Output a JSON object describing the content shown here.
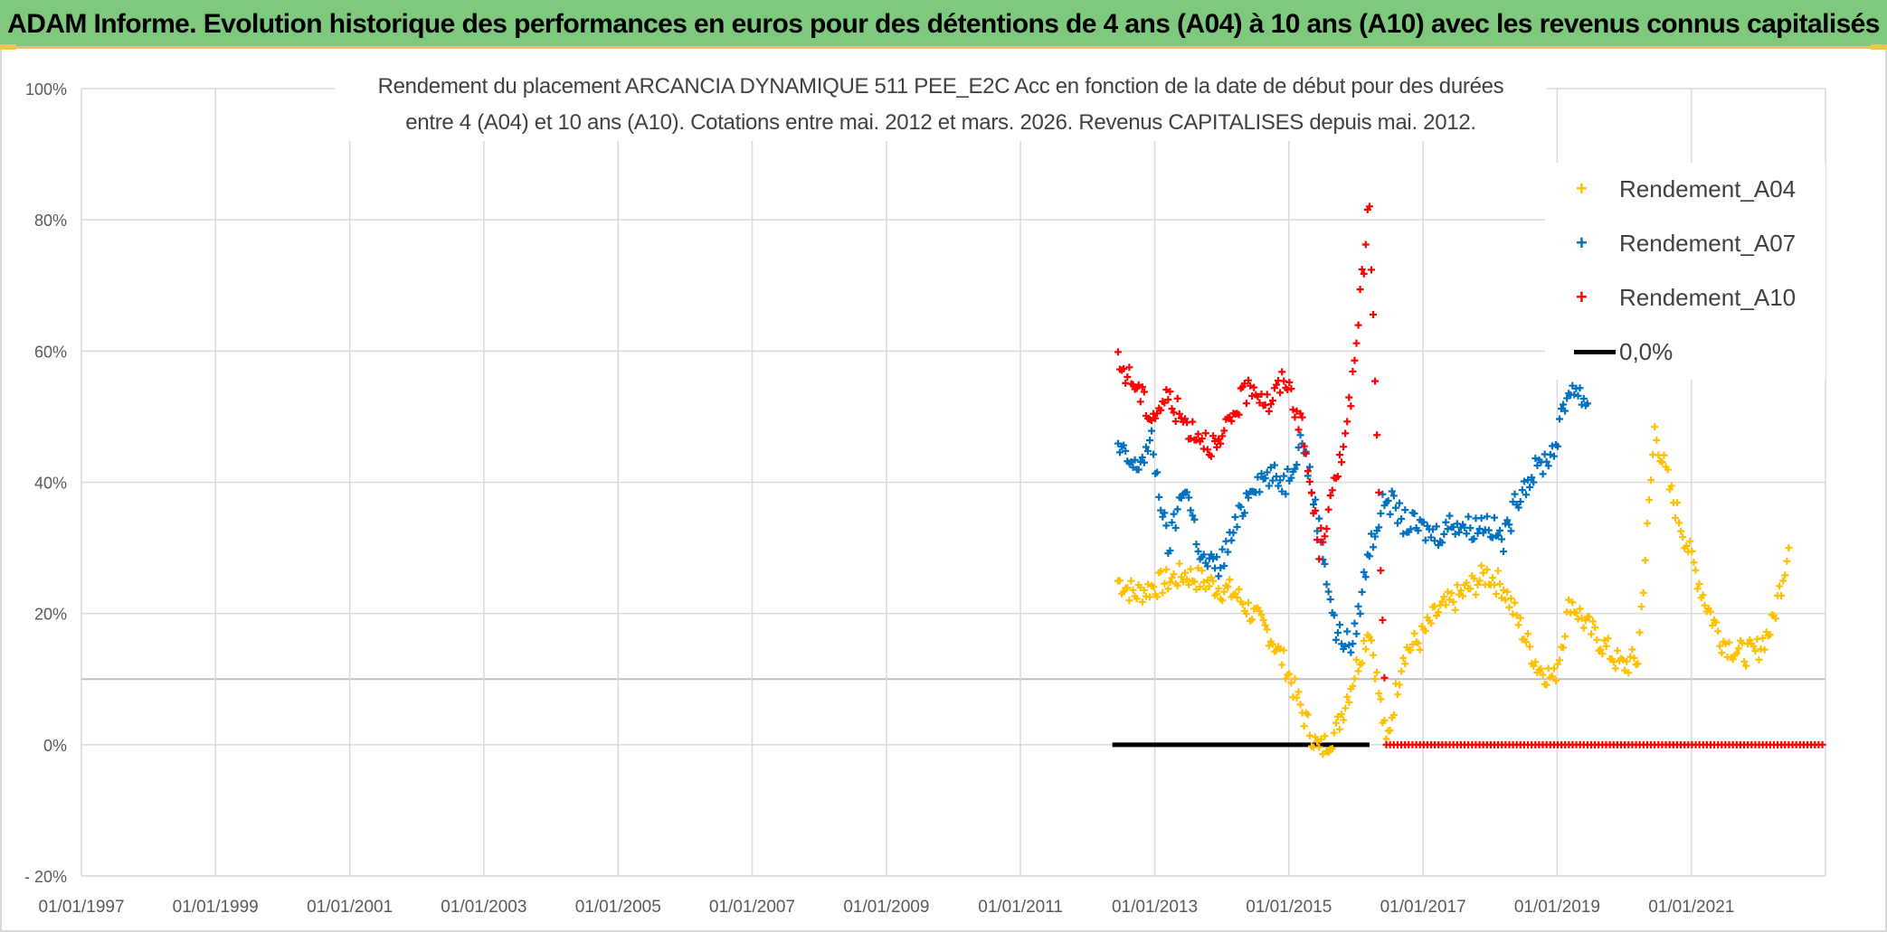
{
  "banner": {
    "title": "ADAM Informe. Evolution historique des performances en euros pour des détentions de 4 ans (A04) à 10 ans (A10) avec les revenus connus capitalisés"
  },
  "colors": {
    "banner_bg": "#7fc97f",
    "banner_accent": "#e6c84a",
    "a04": "#ffc000",
    "a07": "#0070c0",
    "a10": "#ff0000",
    "zero": "#000000"
  },
  "chart_data": {
    "type": "scatter",
    "title_line1": "Rendement du placement ARCANCIA DYNAMIQUE 511 PEE_E2C Acc en fonction de la date de début pour des durées",
    "title_line2": "entre 4 (A04) et 10 ans (A10). Cotations entre mai. 2012 et mars. 2026. Revenus CAPITALISES depuis mai. 2012.",
    "xlim": [
      "01/01/1997",
      "01/01/2023"
    ],
    "ylim": [
      -20,
      100
    ],
    "y_unit": "%",
    "y_ticks": [
      "- 20%",
      "0%",
      "20%",
      "40%",
      "60%",
      "80%",
      "100%"
    ],
    "x_ticks": [
      "01/01/1997",
      "01/01/1999",
      "01/01/2001",
      "01/01/2003",
      "01/01/2005",
      "01/01/2007",
      "01/01/2009",
      "01/01/2011",
      "01/01/2013",
      "01/01/2015",
      "01/01/2017",
      "01/01/2019",
      "01/01/2021"
    ],
    "grid": true,
    "legend_position": "top-right",
    "series": [
      {
        "name": "Rendement_A04",
        "marker": "plus",
        "points": [
          [
            "2012-06",
            25
          ],
          [
            "2012-09",
            23
          ],
          [
            "2012-12",
            24
          ],
          [
            "2013-03",
            25
          ],
          [
            "2013-06",
            26
          ],
          [
            "2013-09",
            25
          ],
          [
            "2013-12",
            24
          ],
          [
            "2014-03",
            23
          ],
          [
            "2014-06",
            20
          ],
          [
            "2014-09",
            17
          ],
          [
            "2014-12",
            12
          ],
          [
            "2015-03",
            5
          ],
          [
            "2015-06",
            -1
          ],
          [
            "2015-09",
            2
          ],
          [
            "2015-12",
            10
          ],
          [
            "2016-03",
            18
          ],
          [
            "2016-06",
            0
          ],
          [
            "2016-09",
            14
          ],
          [
            "2016-12",
            16
          ],
          [
            "2017-03",
            20
          ],
          [
            "2017-06",
            22
          ],
          [
            "2017-09",
            24
          ],
          [
            "2017-12",
            26
          ],
          [
            "2018-03",
            24
          ],
          [
            "2018-06",
            18
          ],
          [
            "2018-09",
            12
          ],
          [
            "2018-12",
            10
          ],
          [
            "2019-03",
            22
          ],
          [
            "2019-06",
            18
          ],
          [
            "2019-09",
            15
          ],
          [
            "2019-12",
            12
          ],
          [
            "2020-03",
            13
          ],
          [
            "2020-06",
            48
          ],
          [
            "2020-09",
            38
          ],
          [
            "2020-12",
            30
          ],
          [
            "2021-03",
            22
          ],
          [
            "2021-06",
            16
          ],
          [
            "2021-09",
            14
          ],
          [
            "2021-12",
            14
          ],
          [
            "2022-03",
            18
          ],
          [
            "2022-06",
            30
          ]
        ]
      },
      {
        "name": "Rendement_A07",
        "marker": "plus",
        "points": [
          [
            "2012-06",
            45
          ],
          [
            "2012-09",
            42
          ],
          [
            "2012-12",
            46
          ],
          [
            "2013-03",
            30
          ],
          [
            "2013-06",
            40
          ],
          [
            "2013-09",
            28
          ],
          [
            "2013-12",
            27
          ],
          [
            "2014-03",
            33
          ],
          [
            "2014-06",
            40
          ],
          [
            "2014-09",
            41
          ],
          [
            "2014-12",
            40
          ],
          [
            "2015-03",
            47
          ],
          [
            "2015-06",
            33
          ],
          [
            "2015-09",
            17
          ],
          [
            "2015-12",
            15
          ],
          [
            "2016-03",
            30
          ],
          [
            "2016-06",
            38
          ],
          [
            "2016-09",
            34
          ],
          [
            "2016-12",
            33
          ],
          [
            "2017-03",
            32
          ],
          [
            "2017-06",
            34
          ],
          [
            "2017-09",
            33
          ],
          [
            "2017-12",
            34
          ],
          [
            "2018-03",
            31
          ],
          [
            "2018-06",
            39
          ],
          [
            "2018-09",
            42
          ],
          [
            "2018-12",
            45
          ],
          [
            "2019-03",
            55
          ],
          [
            "2019-06",
            52
          ]
        ]
      },
      {
        "name": "Rendement_A10",
        "marker": "plus",
        "points": [
          [
            "2012-06",
            58
          ],
          [
            "2012-09",
            55
          ],
          [
            "2012-12",
            50
          ],
          [
            "2013-03",
            53
          ],
          [
            "2013-06",
            49
          ],
          [
            "2013-09",
            47
          ],
          [
            "2013-12",
            45
          ],
          [
            "2014-03",
            51
          ],
          [
            "2014-06",
            55
          ],
          [
            "2014-09",
            52
          ],
          [
            "2014-12",
            56
          ],
          [
            "2015-03",
            48
          ],
          [
            "2015-06",
            30
          ],
          [
            "2015-09",
            40
          ],
          [
            "2015-12",
            55
          ],
          [
            "2016-03",
            83
          ],
          [
            "2016-06",
            0
          ],
          [
            "2016-12",
            0
          ],
          [
            "2017-06",
            0
          ],
          [
            "2017-12",
            0
          ],
          [
            "2018-06",
            0
          ],
          [
            "2018-12",
            0
          ],
          [
            "2019-06",
            0
          ],
          [
            "2019-12",
            0
          ],
          [
            "2020-06",
            0
          ],
          [
            "2020-12",
            0
          ],
          [
            "2021-06",
            0
          ],
          [
            "2021-12",
            0
          ],
          [
            "2022-06",
            0
          ],
          [
            "2022-12",
            0
          ]
        ]
      },
      {
        "name": "0,0%",
        "marker": "line",
        "points": [
          [
            "2012-05",
            0
          ],
          [
            "2016-03",
            0
          ]
        ]
      }
    ]
  }
}
